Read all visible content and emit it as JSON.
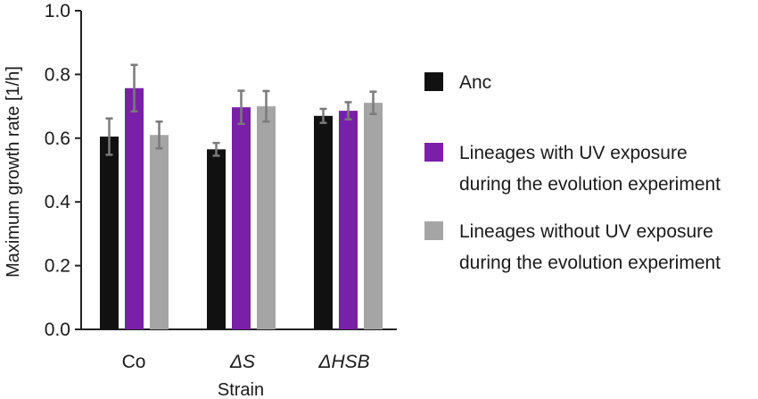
{
  "chart_data": {
    "type": "bar",
    "xlabel": "Strain",
    "ylabel": "Maximum growth rate [1/h]",
    "ylim": [
      0,
      1.0
    ],
    "yticks": [
      "0.0",
      "0.2",
      "0.4",
      "0.6",
      "0.8",
      "1.0"
    ],
    "categories": [
      "Co",
      "ΔS",
      "ΔHSB"
    ],
    "category_italic": [
      false,
      true,
      true
    ],
    "grid": false,
    "legend_position": "right",
    "series": [
      {
        "name": "Anc",
        "color": "#111111",
        "values": [
          0.605,
          0.565,
          0.67
        ],
        "errors": [
          0.057,
          0.02,
          0.022
        ]
      },
      {
        "name": "Lineages with UV exposure during the evolution experiment",
        "color": "#7a1fa8",
        "values": [
          0.757,
          0.697,
          0.686
        ],
        "errors": [
          0.073,
          0.052,
          0.027
        ]
      },
      {
        "name": "Lineages without UV exposure during the evolution experiment",
        "color": "#a5a5a5",
        "values": [
          0.61,
          0.7,
          0.711
        ],
        "errors": [
          0.042,
          0.048,
          0.035
        ]
      }
    ],
    "legend_lines": [
      [
        "Anc"
      ],
      [
        "Lineages with UV exposure",
        "during the evolution experiment"
      ],
      [
        "Lineages without UV exposure",
        "during the evolution experiment"
      ]
    ]
  }
}
